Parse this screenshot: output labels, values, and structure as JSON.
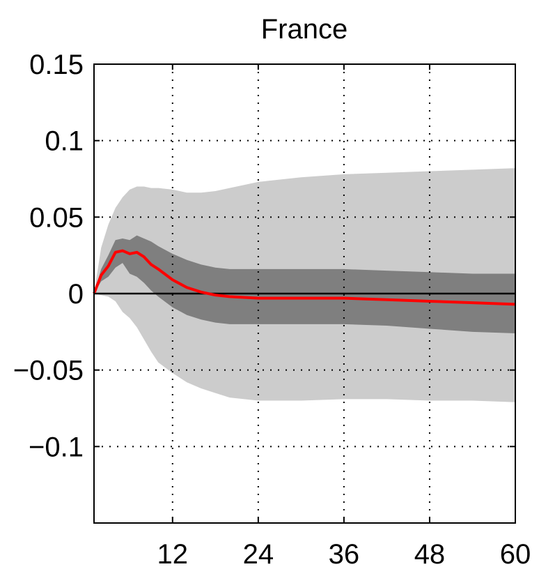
{
  "chart_data": {
    "type": "line",
    "title": "France",
    "xlabel": "",
    "ylabel": "",
    "xlim": [
      1,
      60
    ],
    "ylim": [
      -0.15,
      0.15
    ],
    "xticks": [
      12,
      24,
      36,
      48,
      60
    ],
    "xtick_labels": [
      "12",
      "24",
      "36",
      "48",
      "60"
    ],
    "yticks": [
      0.15,
      0.1,
      0.05,
      0,
      -0.05,
      -0.1
    ],
    "ytick_labels": [
      "0.15",
      "0.1",
      "0.05",
      "0",
      "−0.05",
      "−0.1"
    ],
    "grid": true,
    "zero_line": true,
    "x": [
      1,
      2,
      3,
      4,
      5,
      6,
      7,
      8,
      9,
      10,
      12,
      14,
      16,
      18,
      20,
      24,
      30,
      36,
      42,
      48,
      54,
      60
    ],
    "series": [
      {
        "values": [
          0,
          0.012,
          0.018,
          0.027,
          0.028,
          0.026,
          0.027,
          0.024,
          0.019,
          0.016,
          0.009,
          0.004,
          0.001,
          -0.001,
          -0.002,
          -0.003,
          -0.003,
          -0.003,
          -0.004,
          -0.005,
          -0.006,
          -0.007
        ],
        "color": "#ff0000"
      }
    ],
    "bands": [
      {
        "lower": [
          0,
          -0.001,
          -0.002,
          -0.005,
          -0.012,
          -0.016,
          -0.022,
          -0.03,
          -0.038,
          -0.045,
          -0.052,
          -0.058,
          -0.062,
          -0.065,
          -0.068,
          -0.07,
          -0.07,
          -0.069,
          -0.069,
          -0.07,
          -0.07,
          -0.071
        ],
        "upper": [
          0,
          0.03,
          0.045,
          0.056,
          0.063,
          0.068,
          0.07,
          0.07,
          0.069,
          0.069,
          0.068,
          0.066,
          0.066,
          0.067,
          0.069,
          0.073,
          0.076,
          0.078,
          0.079,
          0.08,
          0.081,
          0.082
        ],
        "color": "#cccccc"
      },
      {
        "lower": [
          0,
          0.008,
          0.011,
          0.017,
          0.02,
          0.013,
          0.011,
          0.007,
          0.002,
          -0.002,
          -0.009,
          -0.014,
          -0.017,
          -0.019,
          -0.02,
          -0.02,
          -0.02,
          -0.02,
          -0.021,
          -0.023,
          -0.025,
          -0.026
        ],
        "upper": [
          0,
          0.016,
          0.025,
          0.035,
          0.036,
          0.035,
          0.038,
          0.036,
          0.034,
          0.031,
          0.026,
          0.022,
          0.019,
          0.017,
          0.016,
          0.016,
          0.016,
          0.016,
          0.015,
          0.014,
          0.013,
          0.013
        ],
        "color": "#7f7f7f"
      }
    ]
  }
}
